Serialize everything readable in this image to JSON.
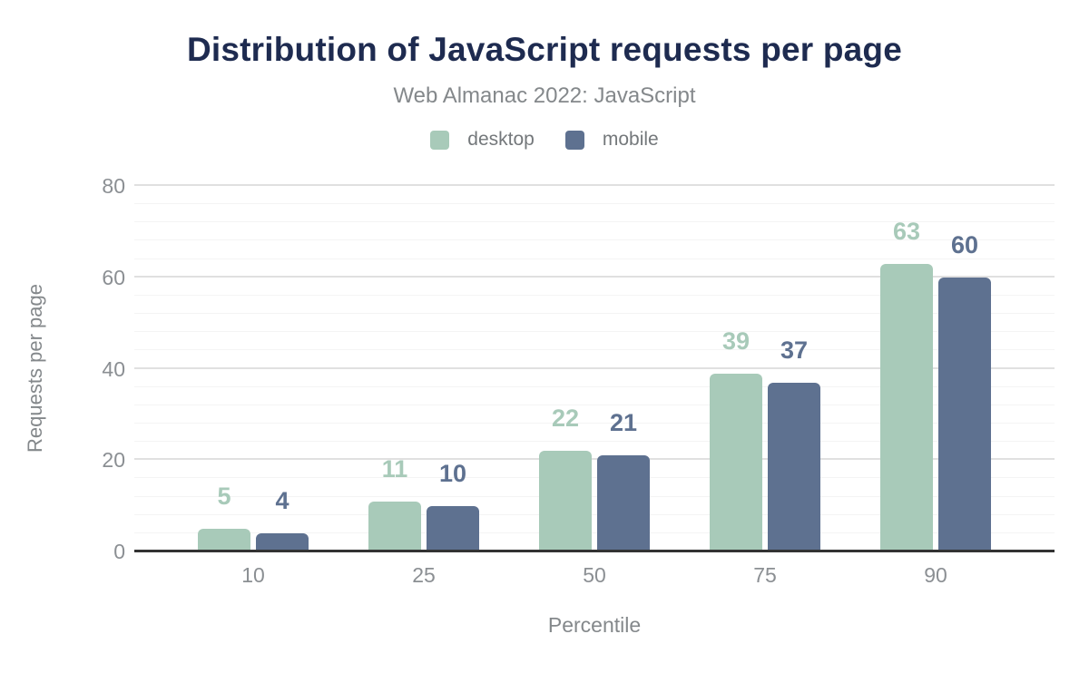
{
  "header": {
    "title": "Distribution of JavaScript requests per page",
    "subtitle": "Web Almanac 2022: JavaScript"
  },
  "chart_data": {
    "type": "bar",
    "title": "Distribution of JavaScript requests per page",
    "subtitle": "Web Almanac 2022: JavaScript",
    "categories": [
      "10",
      "25",
      "50",
      "75",
      "90"
    ],
    "series": [
      {
        "name": "desktop",
        "color": "#a8cab9",
        "values": [
          5,
          11,
          22,
          39,
          63
        ]
      },
      {
        "name": "mobile",
        "color": "#5e7190",
        "values": [
          4,
          10,
          21,
          37,
          60
        ]
      }
    ],
    "xlabel": "Percentile",
    "ylabel": "Requests per page",
    "ylim": [
      0,
      80
    ],
    "yticks": [
      0,
      20,
      40,
      60,
      80
    ],
    "minor_grid_step": 4,
    "grid": true,
    "legend_position": "top",
    "bar_labels": true
  },
  "colors": {
    "title": "#1e2b50",
    "subtitle": "#84888b",
    "axis_text": "#8b8f93",
    "grid_major": "#e0e0e0",
    "grid_minor": "#f4f4f4",
    "baseline": "#333333",
    "background": "#ffffff"
  }
}
